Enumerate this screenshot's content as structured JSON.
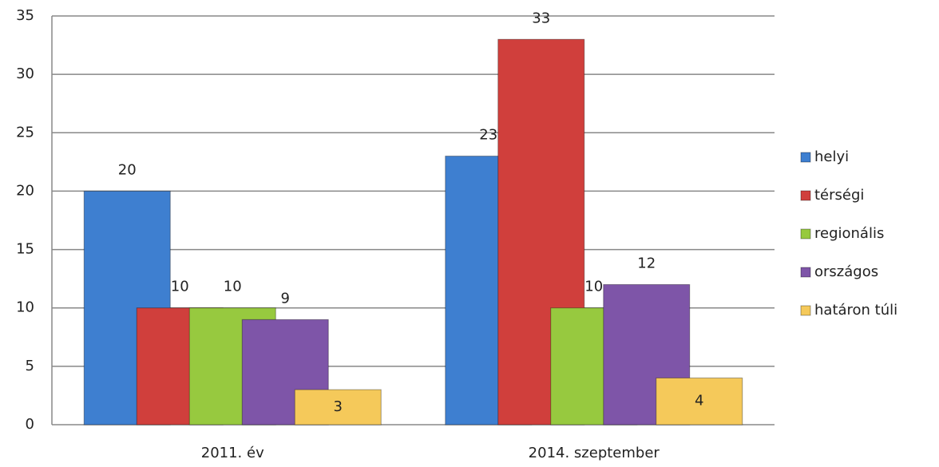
{
  "chart_data": {
    "type": "bar",
    "categories": [
      "2011. év",
      "2014. szeptember"
    ],
    "series": [
      {
        "name": "helyi",
        "color": "#3e7fd0",
        "values": [
          20,
          23
        ]
      },
      {
        "name": "térségi",
        "color": "#d03f3c",
        "values": [
          10,
          33
        ]
      },
      {
        "name": "regionális",
        "color": "#97c93f",
        "values": [
          10,
          10
        ]
      },
      {
        "name": "országos",
        "color": "#7e55a8",
        "values": [
          9,
          12
        ]
      },
      {
        "name": "határon túli",
        "color": "#f5c95a",
        "values": [
          3,
          4
        ]
      }
    ],
    "ylim": [
      0,
      35
    ],
    "yticks": [
      0,
      5,
      10,
      15,
      20,
      25,
      30,
      35
    ],
    "grid": true,
    "legend": "right"
  }
}
